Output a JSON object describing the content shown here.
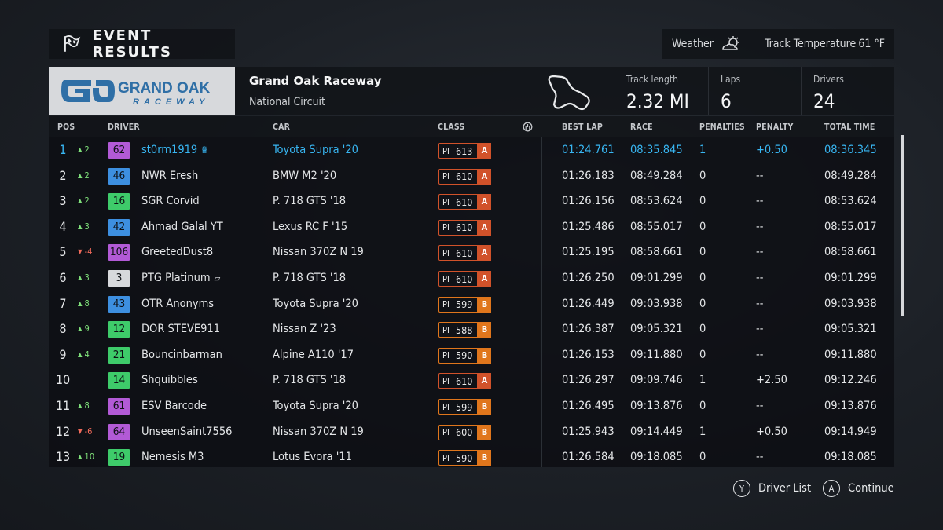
{
  "header": {
    "title": "EVENT RESULTS",
    "weather_label": "Weather",
    "track_temp_label": "Track Temperature",
    "track_temp_value": "61 °F"
  },
  "track": {
    "logo_line1": "GRAND OAK",
    "logo_line2": "RACEWAY",
    "name": "Grand Oak Raceway",
    "layout": "National Circuit",
    "length_label": "Track length",
    "length_value": "2.32 MI",
    "laps_label": "Laps",
    "laps_value": "6",
    "drivers_label": "Drivers",
    "drivers_value": "24"
  },
  "columns": {
    "pos": "POS",
    "driver": "DRIVER",
    "car": "CAR",
    "class": "CLASS",
    "best_lap": "BEST LAP",
    "race": "RACE",
    "penalties": "PENALTIES",
    "penalty": "PENALTY",
    "total_time": "TOTAL TIME"
  },
  "colors": {
    "highlight": "#38b6f2",
    "class_a": "#d1522a",
    "class_b": "#e0761c",
    "up": "#7fe07a",
    "down": "#f06a5a"
  },
  "rows": [
    {
      "pos": "1",
      "chg": "2",
      "dir": "up",
      "num": "62",
      "num_color": "#b25ad6",
      "driver": "st0rm1919",
      "tag": "crown",
      "car": "Toyota Supra '20",
      "pi": "613",
      "cls": "A",
      "best": "01:24.761",
      "race": "08:35.845",
      "pens": "1",
      "pen": "+0.50",
      "total": "08:36.345",
      "highlight": true
    },
    {
      "pos": "2",
      "chg": "2",
      "dir": "up",
      "num": "46",
      "num_color": "#3d8fe0",
      "driver": "NWR Eresh",
      "tag": "",
      "car": "BMW M2 '20",
      "pi": "610",
      "cls": "A",
      "best": "01:26.183",
      "race": "08:49.284",
      "pens": "0",
      "pen": "--",
      "total": "08:49.284"
    },
    {
      "pos": "3",
      "chg": "2",
      "dir": "up",
      "num": "16",
      "num_color": "#3ecb6a",
      "driver": "SGR Corvid",
      "tag": "",
      "car": "P. 718 GTS '18",
      "pi": "610",
      "cls": "A",
      "best": "01:26.156",
      "race": "08:53.624",
      "pens": "0",
      "pen": "--",
      "total": "08:53.624"
    },
    {
      "pos": "4",
      "chg": "3",
      "dir": "up",
      "num": "42",
      "num_color": "#3d8fe0",
      "driver": "Ahmad Galal YT",
      "tag": "",
      "car": "Lexus RC F '15",
      "pi": "610",
      "cls": "A",
      "best": "01:25.486",
      "race": "08:55.017",
      "pens": "0",
      "pen": "--",
      "total": "08:55.017"
    },
    {
      "pos": "5",
      "chg": "-4",
      "dir": "dn",
      "num": "106",
      "num_color": "#b25ad6",
      "driver": "GreetedDust8",
      "tag": "",
      "car": "Nissan 370Z N 19",
      "pi": "610",
      "cls": "A",
      "best": "01:25.195",
      "race": "08:58.661",
      "pens": "0",
      "pen": "--",
      "total": "08:58.661"
    },
    {
      "pos": "6",
      "chg": "3",
      "dir": "up",
      "num": "3",
      "num_color": "#d7d9dc",
      "driver": "PTG Platinum",
      "tag": "badge",
      "car": "P. 718 GTS '18",
      "pi": "610",
      "cls": "A",
      "best": "01:26.250",
      "race": "09:01.299",
      "pens": "0",
      "pen": "--",
      "total": "09:01.299"
    },
    {
      "pos": "7",
      "chg": "8",
      "dir": "up",
      "num": "43",
      "num_color": "#3d8fe0",
      "driver": "OTR Anonyms",
      "tag": "",
      "car": "Toyota Supra '20",
      "pi": "599",
      "cls": "B",
      "best": "01:26.449",
      "race": "09:03.938",
      "pens": "0",
      "pen": "--",
      "total": "09:03.938"
    },
    {
      "pos": "8",
      "chg": "9",
      "dir": "up",
      "num": "12",
      "num_color": "#3ecb6a",
      "driver": "DOR STEVE911",
      "tag": "",
      "car": "Nissan Z '23",
      "pi": "588",
      "cls": "B",
      "best": "01:26.387",
      "race": "09:05.321",
      "pens": "0",
      "pen": "--",
      "total": "09:05.321"
    },
    {
      "pos": "9",
      "chg": "4",
      "dir": "up",
      "num": "21",
      "num_color": "#3ecb6a",
      "driver": "Bouncinbarman",
      "tag": "",
      "car": "Alpine A110 '17",
      "pi": "590",
      "cls": "B",
      "best": "01:26.153",
      "race": "09:11.880",
      "pens": "0",
      "pen": "--",
      "total": "09:11.880"
    },
    {
      "pos": "10",
      "chg": "",
      "dir": "",
      "num": "14",
      "num_color": "#3ecb6a",
      "driver": "Shquibbles",
      "tag": "",
      "car": "P. 718 GTS '18",
      "pi": "610",
      "cls": "A",
      "best": "01:26.297",
      "race": "09:09.746",
      "pens": "1",
      "pen": "+2.50",
      "total": "09:12.246"
    },
    {
      "pos": "11",
      "chg": "8",
      "dir": "up",
      "num": "61",
      "num_color": "#b25ad6",
      "driver": "ESV Barcode",
      "tag": "",
      "car": "Toyota Supra '20",
      "pi": "599",
      "cls": "B",
      "best": "01:26.495",
      "race": "09:13.876",
      "pens": "0",
      "pen": "--",
      "total": "09:13.876"
    },
    {
      "pos": "12",
      "chg": "-6",
      "dir": "dn",
      "num": "64",
      "num_color": "#b25ad6",
      "driver": "UnseenSaint7556",
      "tag": "",
      "car": "Nissan 370Z N 19",
      "pi": "600",
      "cls": "B",
      "best": "01:25.943",
      "race": "09:14.449",
      "pens": "1",
      "pen": "+0.50",
      "total": "09:14.949"
    },
    {
      "pos": "13",
      "chg": "10",
      "dir": "up",
      "num": "19",
      "num_color": "#3ecb6a",
      "driver": "Nemesis M3",
      "tag": "",
      "car": "Lotus Evora '11",
      "pi": "590",
      "cls": "B",
      "best": "01:26.584",
      "race": "09:18.085",
      "pens": "0",
      "pen": "--",
      "total": "09:18.085"
    }
  ],
  "footer": {
    "driver_list_key": "Y",
    "driver_list_label": "Driver List",
    "continue_key": "A",
    "continue_label": "Continue"
  }
}
